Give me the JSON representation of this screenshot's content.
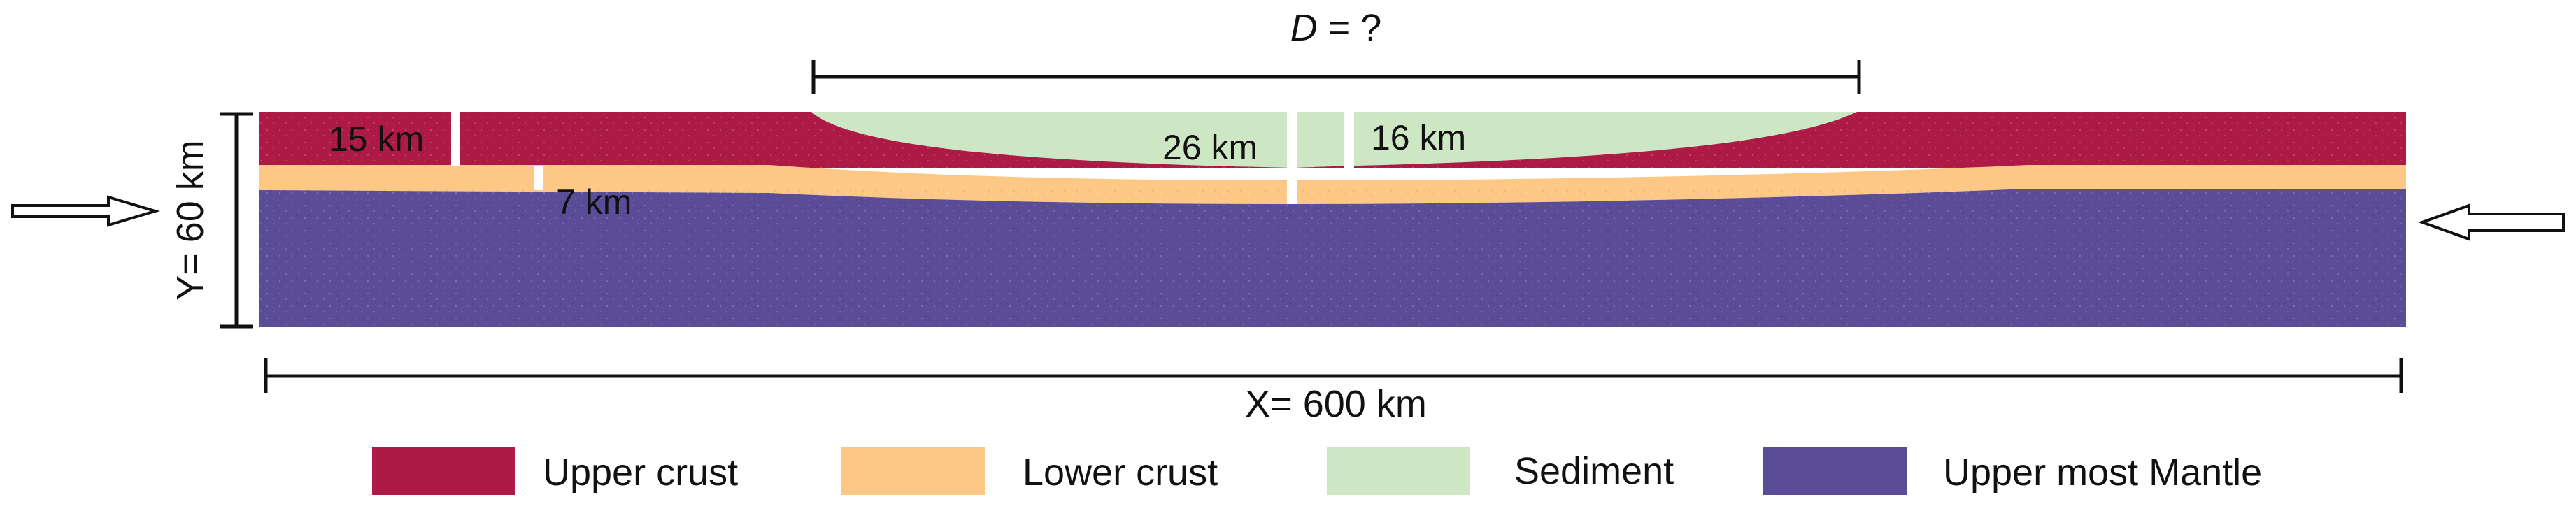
{
  "diagram": {
    "top_dimension": {
      "italic": "D",
      "rest": " = ?"
    },
    "x_dimension": "X= 600 km",
    "y_dimension": "Y= 60 km",
    "annotations": {
      "a15": "15 km",
      "a7": "7 km",
      "a26": "26 km",
      "a16": "16 km"
    },
    "legend": [
      {
        "label": "Upper crust",
        "color": "#ad1a45"
      },
      {
        "label": "Lower crust",
        "color": "#fdc886"
      },
      {
        "label": "Sediment",
        "color": "#cde7c4"
      },
      {
        "label": "Upper most Mantle",
        "color": "#5b4c97"
      }
    ],
    "colors": {
      "upper_crust": "#ad1a45",
      "lower_crust": "#fdc886",
      "sediment": "#cde7c4",
      "mantle": "#5b4c97",
      "line": "#111111"
    },
    "icons": [
      "compression-arrow-left-icon",
      "compression-arrow-right-icon"
    ]
  }
}
